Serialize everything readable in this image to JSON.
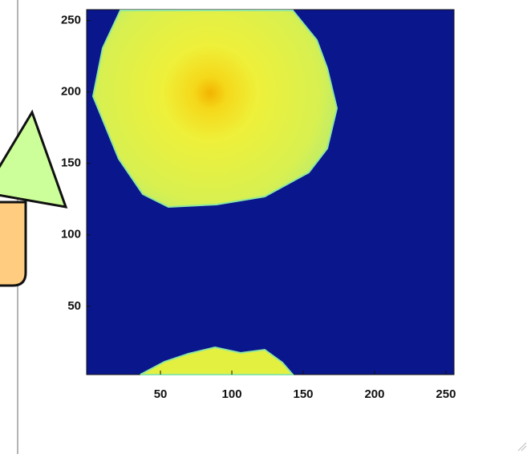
{
  "chart_data": {
    "type": "image",
    "xlim": [
      0.5,
      256.5
    ],
    "ylim": [
      0.5,
      256.5
    ],
    "xticks": [
      50,
      100,
      150,
      200,
      250
    ],
    "yticks": [
      50,
      100,
      150,
      200,
      250
    ]
  }
}
